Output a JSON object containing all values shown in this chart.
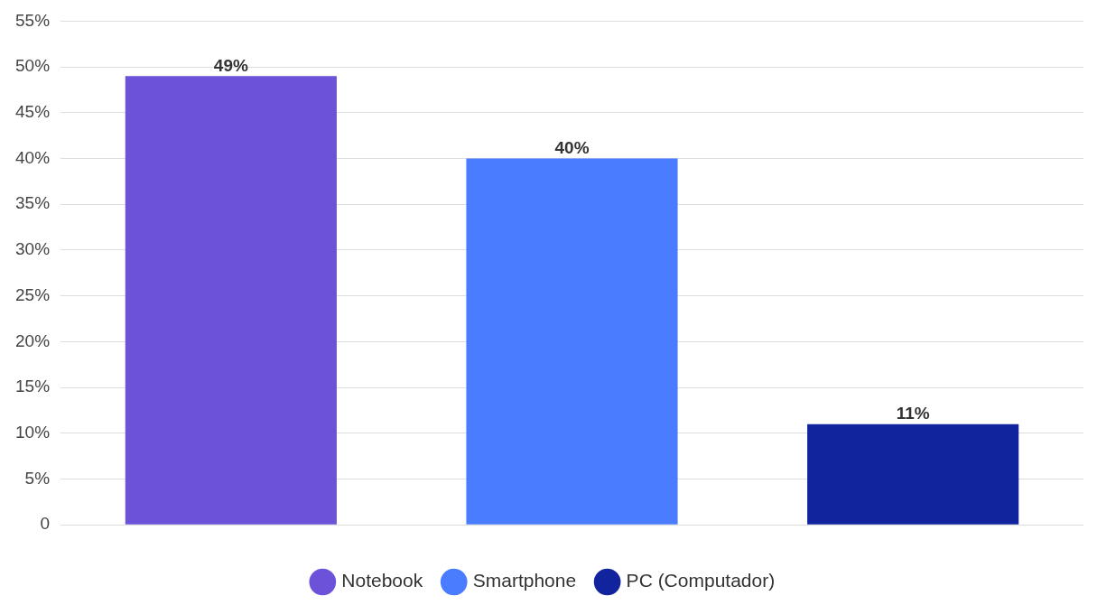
{
  "chart_data": {
    "type": "bar",
    "categories": [
      null,
      null,
      null
    ],
    "series": [
      {
        "name": "Notebook",
        "color": "#6b52d9",
        "values": [
          49,
          null,
          null
        ],
        "value_labels": [
          "49%",
          null,
          null
        ]
      },
      {
        "name": "Smartphone",
        "color": "#4a7cff",
        "values": [
          null,
          40,
          null
        ],
        "value_labels": [
          null,
          "40%",
          null
        ]
      },
      {
        "name": "PC (Computador)",
        "color": "#12239e",
        "values": [
          null,
          null,
          11
        ],
        "value_labels": [
          null,
          null,
          "11%"
        ]
      }
    ],
    "ylim": [
      0,
      55
    ],
    "yticks": [
      0,
      {
        "value": 5,
        "label": "5%"
      },
      {
        "value": 10,
        "label": "10%"
      },
      {
        "value": 15,
        "label": "15%"
      },
      {
        "value": 20,
        "label": "20%"
      },
      {
        "value": 25,
        "label": "25%"
      },
      {
        "value": 30,
        "label": "30%"
      },
      {
        "value": 35,
        "label": "35%"
      },
      {
        "value": 40,
        "label": "40%"
      },
      {
        "value": 45,
        "label": "45%"
      },
      {
        "value": 50,
        "label": "50%"
      },
      {
        "value": 55,
        "label": "55%"
      }
    ],
    "grid": "y",
    "legend": "bottom"
  }
}
